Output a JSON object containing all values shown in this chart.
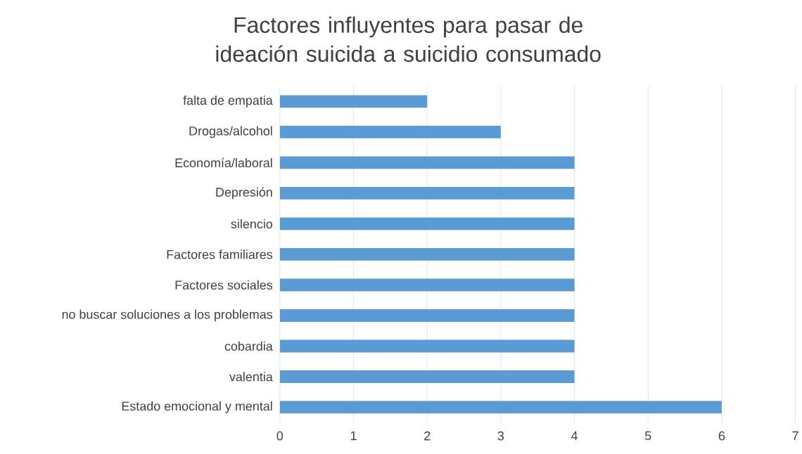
{
  "chart_data": {
    "type": "bar",
    "orientation": "horizontal",
    "title": "Factores influyentes para pasar de ideación suicida a suicidio consumado",
    "categories": [
      "falta de empatia",
      "Drogas/alcohol",
      "Economía/laboral",
      "Depresión",
      "silencio",
      "Factores familiares",
      "Factores sociales",
      "no buscar soluciones a los problemas",
      "cobardia",
      "valentia",
      "Estado emocional y mental"
    ],
    "values": [
      2,
      3,
      4,
      4,
      4,
      4,
      4,
      4,
      4,
      4,
      6
    ],
    "color": "#5b9bd5",
    "xlim": [
      0,
      7
    ],
    "xticks": [
      0,
      1,
      2,
      3,
      4,
      5,
      6,
      7
    ],
    "grid": "x"
  }
}
